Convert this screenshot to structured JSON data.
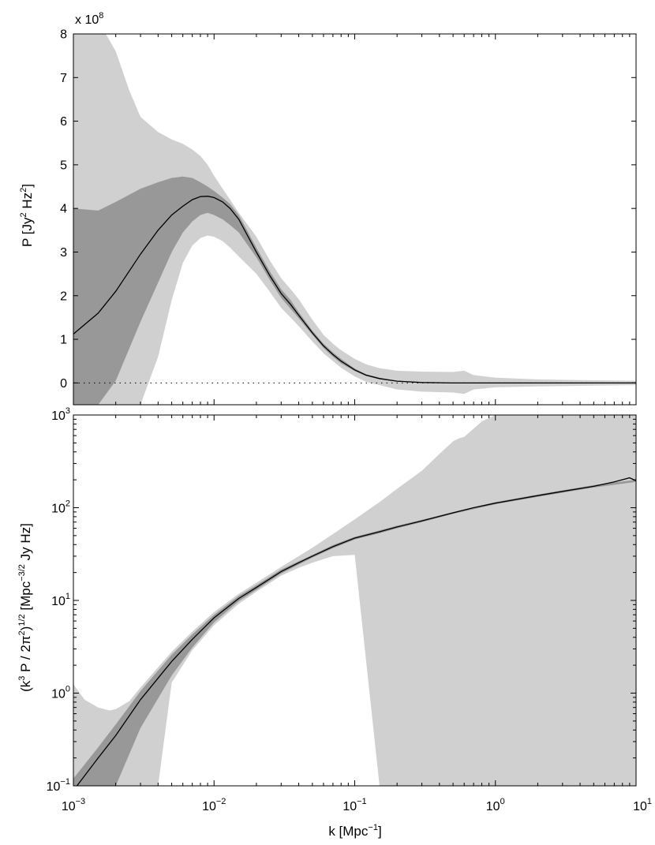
{
  "chart_data": [
    {
      "type": "line",
      "panel": "top",
      "xscale": "log",
      "yscale": "linear",
      "xlim": [
        0.001,
        10
      ],
      "ylim": [
        -50000000.0,
        800000000.0
      ],
      "y_multiplier_label": "x 10",
      "y_multiplier_exp": "8",
      "ylabel_parts": [
        "P [Jy",
        "2",
        " Hz",
        "2",
        "]"
      ],
      "xlabel": "",
      "ytick_values": [
        0,
        100000000.0,
        200000000.0,
        300000000.0,
        400000000.0,
        500000000.0,
        600000000.0,
        700000000.0,
        800000000.0
      ],
      "ytick_labels": [
        "0",
        "1",
        "2",
        "3",
        "4",
        "5",
        "6",
        "7",
        "8"
      ],
      "zero_line": {
        "style": "dotted",
        "y": 0
      },
      "colors": {
        "outer_band": "#d0d0d0",
        "inner_band": "#989898",
        "line": "#000000"
      },
      "series": [
        {
          "role": "mean",
          "x": [
            0.001,
            0.0015,
            0.002,
            0.003,
            0.004,
            0.005,
            0.006,
            0.007,
            0.008,
            0.009,
            0.01,
            0.0115,
            0.013,
            0.015,
            0.02,
            0.025,
            0.03,
            0.035,
            0.04,
            0.05,
            0.06,
            0.07,
            0.08,
            0.1,
            0.12,
            0.15,
            0.2,
            0.3,
            0.5,
            1,
            2,
            5,
            10
          ],
          "y": [
            112000000.0,
            160000000.0,
            210000000.0,
            295000000.0,
            350000000.0,
            385000000.0,
            405000000.0,
            420000000.0,
            427000000.0,
            428000000.0,
            425000000.0,
            415000000.0,
            400000000.0,
            375000000.0,
            300000000.0,
            245000000.0,
            205000000.0,
            180000000.0,
            155000000.0,
            115000000.0,
            85000000.0,
            65000000.0,
            50000000.0,
            30000000.0,
            18000000.0,
            10000000.0,
            4000000.0,
            1000000.0,
            0,
            0,
            0,
            0,
            0
          ]
        },
        {
          "role": "inner_band",
          "x": [
            0.001,
            0.0015,
            0.002,
            0.003,
            0.004,
            0.005,
            0.006,
            0.007,
            0.008,
            0.009,
            0.01,
            0.0115,
            0.013,
            0.015,
            0.02,
            0.025,
            0.03,
            0.035,
            0.04,
            0.05,
            0.06,
            0.07,
            0.08,
            0.1,
            0.12,
            0.15,
            0.2,
            0.3,
            0.5,
            1,
            2,
            5,
            10
          ],
          "upper": [
            400000000.0,
            395000000.0,
            415000000.0,
            445000000.0,
            460000000.0,
            470000000.0,
            473000000.0,
            470000000.0,
            460000000.0,
            450000000.0,
            440000000.0,
            425000000.0,
            410000000.0,
            385000000.0,
            310000000.0,
            255000000.0,
            215000000.0,
            190000000.0,
            162000000.0,
            120000000.0,
            90000000.0,
            70000000.0,
            55000000.0,
            33000000.0,
            20000000.0,
            12000000.0,
            5000000.0,
            1500000.0,
            500000.0,
            0,
            0,
            0,
            0
          ],
          "lower": [
            -50000000.0,
            -50000000.0,
            5000000.0,
            140000000.0,
            230000000.0,
            300000000.0,
            345000000.0,
            370000000.0,
            385000000.0,
            390000000.0,
            385000000.0,
            375000000.0,
            362000000.0,
            345000000.0,
            288000000.0,
            235000000.0,
            195000000.0,
            170000000.0,
            148000000.0,
            110000000.0,
            80000000.0,
            60000000.0,
            45000000.0,
            27000000.0,
            16000000.0,
            8000000.0,
            3000000.0,
            500000.0,
            -500000.0,
            0,
            0,
            0,
            0
          ]
        },
        {
          "role": "outer_band",
          "x": [
            0.001,
            0.0013,
            0.0015,
            0.0017,
            0.002,
            0.0025,
            0.003,
            0.004,
            0.005,
            0.006,
            0.007,
            0.008,
            0.009,
            0.01,
            0.0115,
            0.013,
            0.015,
            0.02,
            0.025,
            0.03,
            0.035,
            0.04,
            0.05,
            0.06,
            0.07,
            0.08,
            0.1,
            0.12,
            0.15,
            0.2,
            0.3,
            0.5,
            0.6,
            0.7,
            1,
            2,
            5,
            10
          ],
          "upper": [
            800000000.0,
            800000000.0,
            800000000.0,
            800000000.0,
            760000000.0,
            670000000.0,
            610000000.0,
            575000000.0,
            558000000.0,
            548000000.0,
            535000000.0,
            520000000.0,
            500000000.0,
            475000000.0,
            445000000.0,
            420000000.0,
            390000000.0,
            335000000.0,
            280000000.0,
            240000000.0,
            215000000.0,
            192000000.0,
            145000000.0,
            110000000.0,
            90000000.0,
            75000000.0,
            55000000.0,
            43000000.0,
            34000000.0,
            28000000.0,
            26000000.0,
            25000000.0,
            28000000.0,
            18000000.0,
            12000000.0,
            8000000.0,
            6000000.0,
            5000000.0
          ],
          "lower": [
            -50000000.0,
            -50000000.0,
            -50000000.0,
            -50000000.0,
            -50000000.0,
            -50000000.0,
            -50000000.0,
            60000000.0,
            190000000.0,
            275000000.0,
            315000000.0,
            332000000.0,
            338000000.0,
            335000000.0,
            325000000.0,
            310000000.0,
            290000000.0,
            250000000.0,
            208000000.0,
            172000000.0,
            150000000.0,
            130000000.0,
            95000000.0,
            68000000.0,
            50000000.0,
            35000000.0,
            15000000.0,
            3000000.0,
            -5000000.0,
            -15000000.0,
            -20000000.0,
            -22000000.0,
            -25000000.0,
            -15000000.0,
            -10000000.0,
            -8000000.0,
            -6000000.0,
            -5000000.0
          ]
        }
      ]
    },
    {
      "type": "line",
      "panel": "bottom",
      "xscale": "log",
      "yscale": "log",
      "xlim": [
        0.001,
        10
      ],
      "ylim": [
        0.1,
        1000
      ],
      "xlabel_parts": [
        "k [Mpc",
        "−1",
        "]"
      ],
      "ylabel_parts": [
        "(k",
        "3",
        " P / 2π",
        "2",
        ")",
        "1/2",
        " [Mpc",
        "−3/2",
        " Jy Hz]"
      ],
      "xtick_values": [
        0.001,
        0.01,
        0.1,
        1,
        10
      ],
      "xtick_bases": [
        "10",
        "10",
        "10",
        "10",
        "10"
      ],
      "xtick_exps": [
        "−3",
        "−2",
        "−1",
        "0",
        "1"
      ],
      "ytick_values": [
        0.1,
        1,
        10,
        100,
        1000
      ],
      "ytick_bases": [
        "10",
        "10",
        "10",
        "10",
        "10"
      ],
      "ytick_exps": [
        "−1",
        "0",
        "1",
        "2",
        "3"
      ],
      "colors": {
        "outer_band": "#d0d0d0",
        "inner_band": "#989898",
        "line": "#000000"
      },
      "series": [
        {
          "role": "mean",
          "x": [
            0.00106,
            0.0015,
            0.002,
            0.003,
            0.005,
            0.007,
            0.01,
            0.015,
            0.02,
            0.03,
            0.04,
            0.05,
            0.07,
            0.1,
            0.15,
            0.2,
            0.3,
            0.5,
            0.7,
            1,
            2,
            3,
            5,
            7,
            9,
            10
          ],
          "y": [
            0.1,
            0.2,
            0.35,
            0.85,
            2.2,
            3.8,
            6.5,
            10.5,
            13.8,
            20.5,
            25.5,
            30,
            38,
            47,
            55,
            62,
            72,
            88,
            100,
            112,
            135,
            150,
            170,
            190,
            210,
            195
          ]
        },
        {
          "role": "inner_band",
          "x": [
            0.001,
            0.0015,
            0.002,
            0.003,
            0.005,
            0.007,
            0.01,
            0.015,
            0.02,
            0.03,
            0.05,
            0.07,
            0.1,
            0.15,
            0.2,
            0.3,
            0.5,
            1,
            2,
            5,
            10
          ],
          "upper": [
            0.12,
            0.26,
            0.46,
            1.05,
            2.6,
            4.3,
            7.0,
            11.2,
            14.6,
            21.5,
            31,
            39.5,
            48.5,
            57,
            64,
            74,
            90,
            115,
            139,
            175,
            200
          ],
          "lower": [
            0.1,
            0.1,
            0.1,
            0.42,
            1.55,
            3.1,
            5.8,
            9.8,
            13.0,
            19.5,
            29,
            36.5,
            45.5,
            53,
            60,
            70,
            86,
            109,
            131,
            165,
            190
          ]
        },
        {
          "role": "outer_band",
          "x": [
            0.001,
            0.0012,
            0.0015,
            0.0018,
            0.002,
            0.0025,
            0.003,
            0.004,
            0.005,
            0.007,
            0.01,
            0.015,
            0.02,
            0.03,
            0.04,
            0.05,
            0.07,
            0.1,
            0.15,
            0.2,
            0.3,
            0.4,
            0.5,
            0.55,
            0.6,
            0.8,
            1,
            2,
            5,
            10
          ],
          "upper": [
            1.25,
            0.85,
            0.7,
            0.65,
            0.67,
            0.82,
            1.15,
            1.9,
            2.8,
            4.6,
            7.5,
            11.8,
            15.5,
            23,
            30,
            37,
            52,
            75,
            115,
            160,
            250,
            380,
            520,
            560,
            580,
            850,
            1000,
            1000,
            1000,
            1000
          ],
          "lower": [
            0.1,
            0.1,
            0.1,
            0.1,
            0.1,
            0.1,
            0.1,
            0.1,
            1.3,
            2.9,
            5.4,
            9.2,
            12.4,
            18.5,
            22.5,
            25.5,
            30,
            31,
            0.1,
            0.1,
            0.1,
            0.1,
            0.1,
            0.1,
            0.1,
            0.1,
            0.1,
            0.1,
            0.1,
            0.1
          ]
        }
      ]
    }
  ]
}
